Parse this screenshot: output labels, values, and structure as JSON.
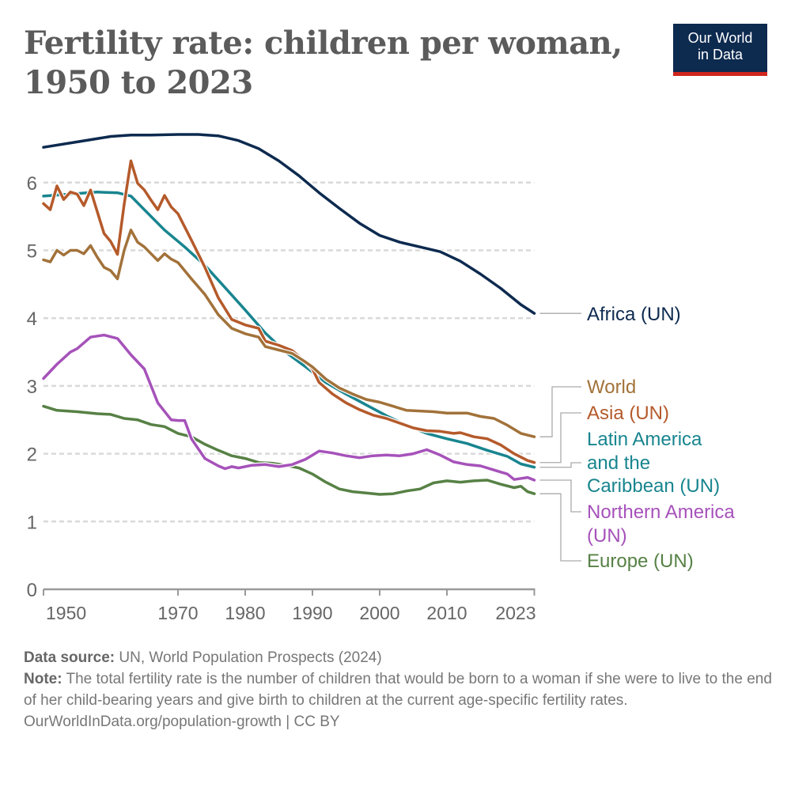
{
  "header": {
    "title_line1": "Fertility rate: children per woman,",
    "title_line2": "1950 to 2023",
    "logo_line1": "Our World",
    "logo_line2": "in Data"
  },
  "footer": {
    "source_label": "Data source:",
    "source_text": " UN, World Population Prospects (2024)",
    "note_label": "Note:",
    "note_text": " The total fertility rate is the number of children that would be born to a woman if she were to live to the end of her child-bearing years and give birth to children at the current age-specific fertility rates.",
    "link_text": "OurWorldInData.org/population-growth | CC BY"
  },
  "colors": {
    "logo_bg": "#0d2a4f",
    "logo_band": "#ce261e"
  },
  "chart_data": {
    "type": "line",
    "title": "Fertility rate: children per woman, 1950 to 2023",
    "xlabel": "",
    "ylabel": "",
    "xlim": [
      1950,
      2023
    ],
    "ylim": [
      0,
      6.5
    ],
    "grid": true,
    "x_ticks": [
      1950,
      1970,
      1980,
      1990,
      2000,
      2010,
      2023
    ],
    "y_ticks": [
      0,
      1,
      2,
      3,
      4,
      5,
      6
    ],
    "legend_placement": "right",
    "series": [
      {
        "name": "Africa (UN)",
        "color": "#0d2a4f",
        "points": [
          [
            1950,
            6.52
          ],
          [
            1955,
            6.6
          ],
          [
            1960,
            6.68
          ],
          [
            1963,
            6.7
          ],
          [
            1966,
            6.7
          ],
          [
            1970,
            6.71
          ],
          [
            1973,
            6.71
          ],
          [
            1976,
            6.69
          ],
          [
            1979,
            6.62
          ],
          [
            1982,
            6.5
          ],
          [
            1985,
            6.32
          ],
          [
            1988,
            6.1
          ],
          [
            1991,
            5.85
          ],
          [
            1994,
            5.62
          ],
          [
            1997,
            5.4
          ],
          [
            2000,
            5.22
          ],
          [
            2003,
            5.12
          ],
          [
            2006,
            5.05
          ],
          [
            2009,
            4.98
          ],
          [
            2012,
            4.84
          ],
          [
            2015,
            4.65
          ],
          [
            2018,
            4.44
          ],
          [
            2021,
            4.2
          ],
          [
            2023,
            4.07
          ]
        ]
      },
      {
        "name": "World",
        "color": "#a2723a",
        "points": [
          [
            1950,
            4.86
          ],
          [
            1951,
            4.83
          ],
          [
            1952,
            5.0
          ],
          [
            1953,
            4.93
          ],
          [
            1954,
            5.0
          ],
          [
            1955,
            5.0
          ],
          [
            1956,
            4.95
          ],
          [
            1957,
            5.07
          ],
          [
            1958,
            4.9
          ],
          [
            1959,
            4.75
          ],
          [
            1960,
            4.7
          ],
          [
            1961,
            4.58
          ],
          [
            1962,
            5.0
          ],
          [
            1963,
            5.3
          ],
          [
            1964,
            5.12
          ],
          [
            1965,
            5.05
          ],
          [
            1966,
            4.95
          ],
          [
            1967,
            4.85
          ],
          [
            1968,
            4.95
          ],
          [
            1969,
            4.87
          ],
          [
            1970,
            4.82
          ],
          [
            1972,
            4.58
          ],
          [
            1974,
            4.35
          ],
          [
            1976,
            4.05
          ],
          [
            1978,
            3.85
          ],
          [
            1980,
            3.77
          ],
          [
            1982,
            3.72
          ],
          [
            1983,
            3.58
          ],
          [
            1985,
            3.53
          ],
          [
            1987,
            3.48
          ],
          [
            1989,
            3.35
          ],
          [
            1990,
            3.28
          ],
          [
            1992,
            3.1
          ],
          [
            1994,
            2.97
          ],
          [
            1996,
            2.88
          ],
          [
            1998,
            2.8
          ],
          [
            2000,
            2.76
          ],
          [
            2002,
            2.7
          ],
          [
            2004,
            2.64
          ],
          [
            2006,
            2.63
          ],
          [
            2008,
            2.62
          ],
          [
            2010,
            2.6
          ],
          [
            2012,
            2.6
          ],
          [
            2013,
            2.6
          ],
          [
            2015,
            2.55
          ],
          [
            2017,
            2.52
          ],
          [
            2019,
            2.42
          ],
          [
            2021,
            2.3
          ],
          [
            2023,
            2.25
          ]
        ]
      },
      {
        "name": "Asia (UN)",
        "color": "#b55a2b",
        "points": [
          [
            1950,
            5.69
          ],
          [
            1951,
            5.6
          ],
          [
            1952,
            5.95
          ],
          [
            1953,
            5.75
          ],
          [
            1954,
            5.86
          ],
          [
            1955,
            5.83
          ],
          [
            1956,
            5.66
          ],
          [
            1957,
            5.89
          ],
          [
            1958,
            5.57
          ],
          [
            1959,
            5.25
          ],
          [
            1960,
            5.13
          ],
          [
            1961,
            4.94
          ],
          [
            1962,
            5.68
          ],
          [
            1963,
            6.32
          ],
          [
            1964,
            5.99
          ],
          [
            1965,
            5.89
          ],
          [
            1966,
            5.74
          ],
          [
            1967,
            5.6
          ],
          [
            1968,
            5.81
          ],
          [
            1969,
            5.64
          ],
          [
            1970,
            5.54
          ],
          [
            1972,
            5.15
          ],
          [
            1974,
            4.75
          ],
          [
            1976,
            4.3
          ],
          [
            1978,
            3.98
          ],
          [
            1980,
            3.9
          ],
          [
            1982,
            3.85
          ],
          [
            1983,
            3.66
          ],
          [
            1985,
            3.6
          ],
          [
            1987,
            3.52
          ],
          [
            1989,
            3.35
          ],
          [
            1990,
            3.25
          ],
          [
            1991,
            3.05
          ],
          [
            1993,
            2.88
          ],
          [
            1995,
            2.75
          ],
          [
            1997,
            2.65
          ],
          [
            1999,
            2.57
          ],
          [
            2001,
            2.52
          ],
          [
            2003,
            2.45
          ],
          [
            2005,
            2.38
          ],
          [
            2007,
            2.34
          ],
          [
            2009,
            2.33
          ],
          [
            2011,
            2.3
          ],
          [
            2012,
            2.31
          ],
          [
            2014,
            2.25
          ],
          [
            2016,
            2.22
          ],
          [
            2018,
            2.13
          ],
          [
            2020,
            2.0
          ],
          [
            2022,
            1.9
          ],
          [
            2023,
            1.87
          ]
        ]
      },
      {
        "name": "Latin America and the Caribbean (UN)",
        "color": "#18858f",
        "points": [
          [
            1950,
            5.8
          ],
          [
            1954,
            5.83
          ],
          [
            1958,
            5.86
          ],
          [
            1961,
            5.85
          ],
          [
            1963,
            5.8
          ],
          [
            1965,
            5.6
          ],
          [
            1968,
            5.3
          ],
          [
            1971,
            5.05
          ],
          [
            1974,
            4.78
          ],
          [
            1977,
            4.45
          ],
          [
            1980,
            4.12
          ],
          [
            1983,
            3.78
          ],
          [
            1986,
            3.5
          ],
          [
            1989,
            3.28
          ],
          [
            1992,
            3.05
          ],
          [
            1995,
            2.88
          ],
          [
            1998,
            2.72
          ],
          [
            2001,
            2.56
          ],
          [
            2004,
            2.42
          ],
          [
            2007,
            2.3
          ],
          [
            2010,
            2.22
          ],
          [
            2013,
            2.15
          ],
          [
            2016,
            2.05
          ],
          [
            2019,
            1.96
          ],
          [
            2021,
            1.85
          ],
          [
            2023,
            1.8
          ]
        ]
      },
      {
        "name": "Northern America (UN)",
        "color": "#a652ba",
        "points": [
          [
            1950,
            3.11
          ],
          [
            1952,
            3.32
          ],
          [
            1954,
            3.5
          ],
          [
            1955,
            3.55
          ],
          [
            1957,
            3.72
          ],
          [
            1959,
            3.75
          ],
          [
            1961,
            3.7
          ],
          [
            1963,
            3.46
          ],
          [
            1965,
            3.25
          ],
          [
            1967,
            2.75
          ],
          [
            1969,
            2.5
          ],
          [
            1970,
            2.49
          ],
          [
            1971,
            2.49
          ],
          [
            1972,
            2.22
          ],
          [
            1974,
            1.93
          ],
          [
            1976,
            1.82
          ],
          [
            1977,
            1.78
          ],
          [
            1978,
            1.81
          ],
          [
            1979,
            1.79
          ],
          [
            1981,
            1.83
          ],
          [
            1983,
            1.84
          ],
          [
            1985,
            1.81
          ],
          [
            1987,
            1.84
          ],
          [
            1989,
            1.92
          ],
          [
            1991,
            2.04
          ],
          [
            1993,
            2.01
          ],
          [
            1995,
            1.97
          ],
          [
            1997,
            1.94
          ],
          [
            1999,
            1.97
          ],
          [
            2001,
            1.98
          ],
          [
            2003,
            1.97
          ],
          [
            2005,
            2.0
          ],
          [
            2007,
            2.06
          ],
          [
            2009,
            1.98
          ],
          [
            2011,
            1.88
          ],
          [
            2013,
            1.84
          ],
          [
            2015,
            1.82
          ],
          [
            2017,
            1.76
          ],
          [
            2019,
            1.7
          ],
          [
            2020,
            1.62
          ],
          [
            2022,
            1.65
          ],
          [
            2023,
            1.61
          ]
        ]
      },
      {
        "name": "Europe (UN)",
        "color": "#578145",
        "points": [
          [
            1950,
            2.7
          ],
          [
            1952,
            2.64
          ],
          [
            1955,
            2.62
          ],
          [
            1958,
            2.59
          ],
          [
            1960,
            2.58
          ],
          [
            1962,
            2.52
          ],
          [
            1964,
            2.5
          ],
          [
            1966,
            2.43
          ],
          [
            1968,
            2.4
          ],
          [
            1970,
            2.3
          ],
          [
            1972,
            2.25
          ],
          [
            1974,
            2.14
          ],
          [
            1976,
            2.05
          ],
          [
            1978,
            1.97
          ],
          [
            1980,
            1.93
          ],
          [
            1982,
            1.87
          ],
          [
            1984,
            1.86
          ],
          [
            1986,
            1.83
          ],
          [
            1988,
            1.79
          ],
          [
            1990,
            1.7
          ],
          [
            1992,
            1.58
          ],
          [
            1994,
            1.48
          ],
          [
            1996,
            1.44
          ],
          [
            1998,
            1.42
          ],
          [
            2000,
            1.4
          ],
          [
            2002,
            1.41
          ],
          [
            2004,
            1.45
          ],
          [
            2006,
            1.48
          ],
          [
            2008,
            1.57
          ],
          [
            2010,
            1.6
          ],
          [
            2012,
            1.58
          ],
          [
            2014,
            1.6
          ],
          [
            2016,
            1.61
          ],
          [
            2018,
            1.55
          ],
          [
            2020,
            1.5
          ],
          [
            2021,
            1.52
          ],
          [
            2022,
            1.44
          ],
          [
            2023,
            1.41
          ]
        ]
      }
    ]
  }
}
